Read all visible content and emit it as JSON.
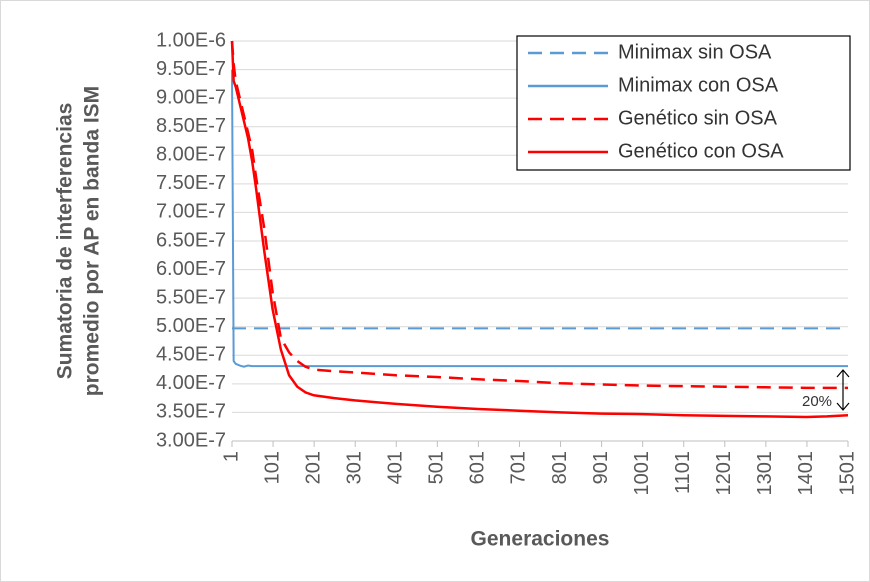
{
  "chart_data": {
    "type": "line",
    "x_label": "Generaciones",
    "y_label": [
      "Sumatoria de interferencias",
      "promedio por AP en banda ISM"
    ],
    "annotation": "20%",
    "x": [
      1,
      5,
      10,
      20,
      30,
      40,
      50,
      60,
      80,
      100,
      120,
      140,
      160,
      180,
      200,
      250,
      300,
      400,
      500,
      600,
      700,
      800,
      900,
      1000,
      1100,
      1200,
      1300,
      1400,
      1450,
      1501
    ],
    "series": [
      {
        "name": "Minimax sin OSA",
        "color": "#5b9bd5",
        "dash": true,
        "values": [
          4.97e-07,
          4.97e-07,
          4.97e-07,
          4.97e-07,
          4.97e-07,
          4.97e-07,
          4.97e-07,
          4.97e-07,
          4.97e-07,
          4.97e-07,
          4.97e-07,
          4.97e-07,
          4.97e-07,
          4.97e-07,
          4.97e-07,
          4.97e-07,
          4.97e-07,
          4.97e-07,
          4.97e-07,
          4.97e-07,
          4.97e-07,
          4.97e-07,
          4.97e-07,
          4.97e-07,
          4.97e-07,
          4.97e-07,
          4.97e-07,
          4.97e-07,
          4.97e-07,
          4.97e-07
        ]
      },
      {
        "name": "Minimax con OSA",
        "color": "#5b9bd5",
        "dash": false,
        "values": [
          9.5e-07,
          4.4e-07,
          4.35e-07,
          4.32e-07,
          4.3e-07,
          4.32e-07,
          4.31e-07,
          4.31e-07,
          4.31e-07,
          4.31e-07,
          4.31e-07,
          4.31e-07,
          4.31e-07,
          4.31e-07,
          4.31e-07,
          4.31e-07,
          4.31e-07,
          4.31e-07,
          4.31e-07,
          4.31e-07,
          4.31e-07,
          4.31e-07,
          4.31e-07,
          4.31e-07,
          4.31e-07,
          4.31e-07,
          4.31e-07,
          4.31e-07,
          4.31e-07,
          4.31e-07
        ]
      },
      {
        "name": "Genético sin OSA",
        "color": "#ff0000",
        "dash": true,
        "values": [
          1e-06,
          9.6e-07,
          9.3e-07,
          9e-07,
          8.7e-07,
          8.4e-07,
          8.1e-07,
          7.6e-07,
          6.7e-07,
          5.6e-07,
          4.8e-07,
          4.55e-07,
          4.4e-07,
          4.3e-07,
          4.25e-07,
          4.22e-07,
          4.2e-07,
          4.15e-07,
          4.12e-07,
          4.08e-07,
          4.05e-07,
          4.01e-07,
          3.99e-07,
          3.97e-07,
          3.96e-07,
          3.95e-07,
          3.94e-07,
          3.93e-07,
          3.93e-07,
          3.93e-07
        ]
      },
      {
        "name": "Genético con OSA",
        "color": "#ff0000",
        "dash": false,
        "values": [
          1e-06,
          9.3e-07,
          9.2e-07,
          8.9e-07,
          8.6e-07,
          8.3e-07,
          7.9e-07,
          7.4e-07,
          6.3e-07,
          5.3e-07,
          4.6e-07,
          4.15e-07,
          3.95e-07,
          3.85e-07,
          3.8e-07,
          3.75e-07,
          3.71e-07,
          3.65e-07,
          3.6e-07,
          3.56e-07,
          3.53e-07,
          3.5e-07,
          3.48e-07,
          3.47e-07,
          3.45e-07,
          3.44e-07,
          3.43e-07,
          3.42e-07,
          3.43e-07,
          3.45e-07
        ]
      }
    ],
    "xlim": [
      1,
      1501
    ],
    "xticks": [
      1,
      101,
      201,
      301,
      401,
      501,
      601,
      701,
      801,
      901,
      1001,
      1101,
      1201,
      1301,
      1401,
      1501
    ],
    "ylim": [
      3e-07,
      1e-06
    ],
    "yticks": [
      {
        "value": 3e-07,
        "label": "3.00E-7"
      },
      {
        "value": 3.5e-07,
        "label": "3.50E-7"
      },
      {
        "value": 4e-07,
        "label": "4.00E-7"
      },
      {
        "value": 4.5e-07,
        "label": "4.50E-7"
      },
      {
        "value": 5e-07,
        "label": "5.00E-7"
      },
      {
        "value": 5.5e-07,
        "label": "5.50E-7"
      },
      {
        "value": 6e-07,
        "label": "6.00E-7"
      },
      {
        "value": 6.5e-07,
        "label": "6.50E-7"
      },
      {
        "value": 7e-07,
        "label": "7.00E-7"
      },
      {
        "value": 7.5e-07,
        "label": "7.50E-7"
      },
      {
        "value": 8e-07,
        "label": "8.00E-7"
      },
      {
        "value": 8.5e-07,
        "label": "8.50E-7"
      },
      {
        "value": 9e-07,
        "label": "9.00E-7"
      },
      {
        "value": 9.5e-07,
        "label": "9.50E-7"
      },
      {
        "value": 1e-06,
        "label": "1.00E-6"
      }
    ],
    "grid": true,
    "legend": "top-right"
  }
}
